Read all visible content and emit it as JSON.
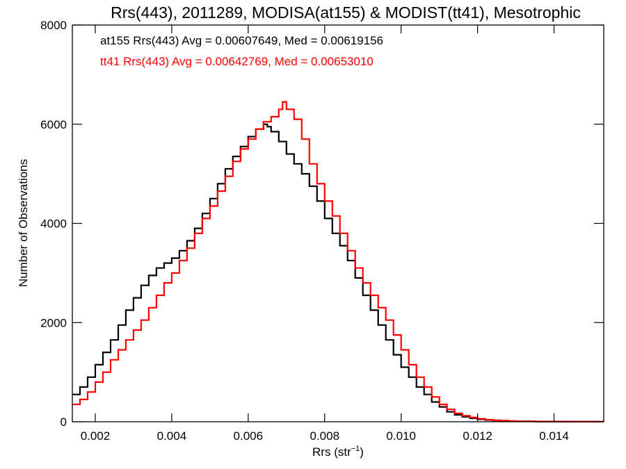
{
  "chart_data": {
    "type": "line",
    "title": "Rrs(443), 2011289, MODISA(at155) & MODIST(tt41), Mesotrophic",
    "xlabel": "Rrs (str",
    "xlabel_sup": "−1",
    "xlabel_close": ")",
    "ylabel": "Number of Observations",
    "xlim": [
      0.0014,
      0.0153
    ],
    "ylim": [
      0,
      8000
    ],
    "xticks": [
      0.002,
      0.004,
      0.006,
      0.008,
      0.01,
      0.012,
      0.014
    ],
    "xtick_labels": [
      "0.002",
      "0.004",
      "0.006",
      "0.008",
      "0.010",
      "0.012",
      "0.014"
    ],
    "yticks": [
      0,
      2000,
      4000,
      6000,
      8000
    ],
    "ytick_labels": [
      "0",
      "2000",
      "4000",
      "6000",
      "8000"
    ],
    "grid": false,
    "step_style": true,
    "annotations": [
      {
        "text": "at155 Rrs(443) Avg = 0.00607649, Med = 0.00619156",
        "color": "#000000"
      },
      {
        "text": "tt41 Rrs(443) Avg = 0.00642769, Med = 0.00653010",
        "color": "#ff0000"
      }
    ],
    "series": [
      {
        "color": "#000000",
        "x": [
          0.0014,
          0.0016,
          0.0018,
          0.002,
          0.0022,
          0.0024,
          0.0026,
          0.0028,
          0.003,
          0.0032,
          0.0034,
          0.0036,
          0.0038,
          0.004,
          0.0042,
          0.0044,
          0.0046,
          0.0048,
          0.005,
          0.0052,
          0.0054,
          0.0056,
          0.0058,
          0.006,
          0.0062,
          0.0064,
          0.0065,
          0.0066,
          0.0068,
          0.007,
          0.0072,
          0.0074,
          0.0076,
          0.0078,
          0.008,
          0.0082,
          0.0084,
          0.0086,
          0.0088,
          0.009,
          0.0092,
          0.0094,
          0.0096,
          0.0098,
          0.01,
          0.0102,
          0.0104,
          0.0106,
          0.0108,
          0.011,
          0.0112,
          0.0114,
          0.0116,
          0.0118,
          0.012,
          0.0122,
          0.0124,
          0.0126,
          0.0128,
          0.013,
          0.0135,
          0.014,
          0.0145,
          0.0153
        ],
        "y": [
          550,
          700,
          900,
          1150,
          1400,
          1650,
          1950,
          2250,
          2500,
          2750,
          2950,
          3100,
          3200,
          3300,
          3450,
          3650,
          3900,
          4200,
          4500,
          4800,
          5100,
          5350,
          5550,
          5750,
          5900,
          6000,
          5950,
          5850,
          5650,
          5400,
          5200,
          5000,
          4750,
          4450,
          4100,
          3800,
          3550,
          3250,
          2900,
          2550,
          2250,
          1950,
          1650,
          1350,
          1100,
          900,
          700,
          550,
          400,
          300,
          200,
          140,
          100,
          70,
          50,
          35,
          25,
          18,
          12,
          9,
          5,
          3,
          2,
          1
        ]
      },
      {
        "color": "#ff0000",
        "x": [
          0.0014,
          0.0016,
          0.0018,
          0.002,
          0.0022,
          0.0024,
          0.0026,
          0.0028,
          0.003,
          0.0032,
          0.0034,
          0.0036,
          0.0038,
          0.004,
          0.0042,
          0.0044,
          0.0046,
          0.0048,
          0.005,
          0.0052,
          0.0054,
          0.0056,
          0.0058,
          0.006,
          0.0062,
          0.0064,
          0.0066,
          0.0068,
          0.0069,
          0.007,
          0.0072,
          0.0074,
          0.0076,
          0.0078,
          0.008,
          0.0082,
          0.0084,
          0.0086,
          0.0088,
          0.009,
          0.0092,
          0.0094,
          0.0096,
          0.0098,
          0.01,
          0.0102,
          0.0104,
          0.0106,
          0.0108,
          0.011,
          0.0112,
          0.0114,
          0.0116,
          0.0118,
          0.012,
          0.0122,
          0.0124,
          0.0126,
          0.0128,
          0.013,
          0.0135,
          0.014,
          0.0145,
          0.0153
        ],
        "y": [
          350,
          450,
          600,
          800,
          1000,
          1250,
          1450,
          1650,
          1850,
          2050,
          2300,
          2550,
          2800,
          3000,
          3250,
          3500,
          3800,
          4100,
          4350,
          4650,
          4950,
          5250,
          5500,
          5700,
          5900,
          6050,
          6150,
          6300,
          6450,
          6300,
          6100,
          5700,
          5200,
          4800,
          4450,
          4150,
          3800,
          3450,
          3100,
          2800,
          2550,
          2300,
          2050,
          1750,
          1450,
          1150,
          900,
          700,
          500,
          350,
          250,
          170,
          120,
          85,
          60,
          40,
          30,
          22,
          15,
          10,
          6,
          4,
          2,
          1
        ]
      }
    ]
  }
}
